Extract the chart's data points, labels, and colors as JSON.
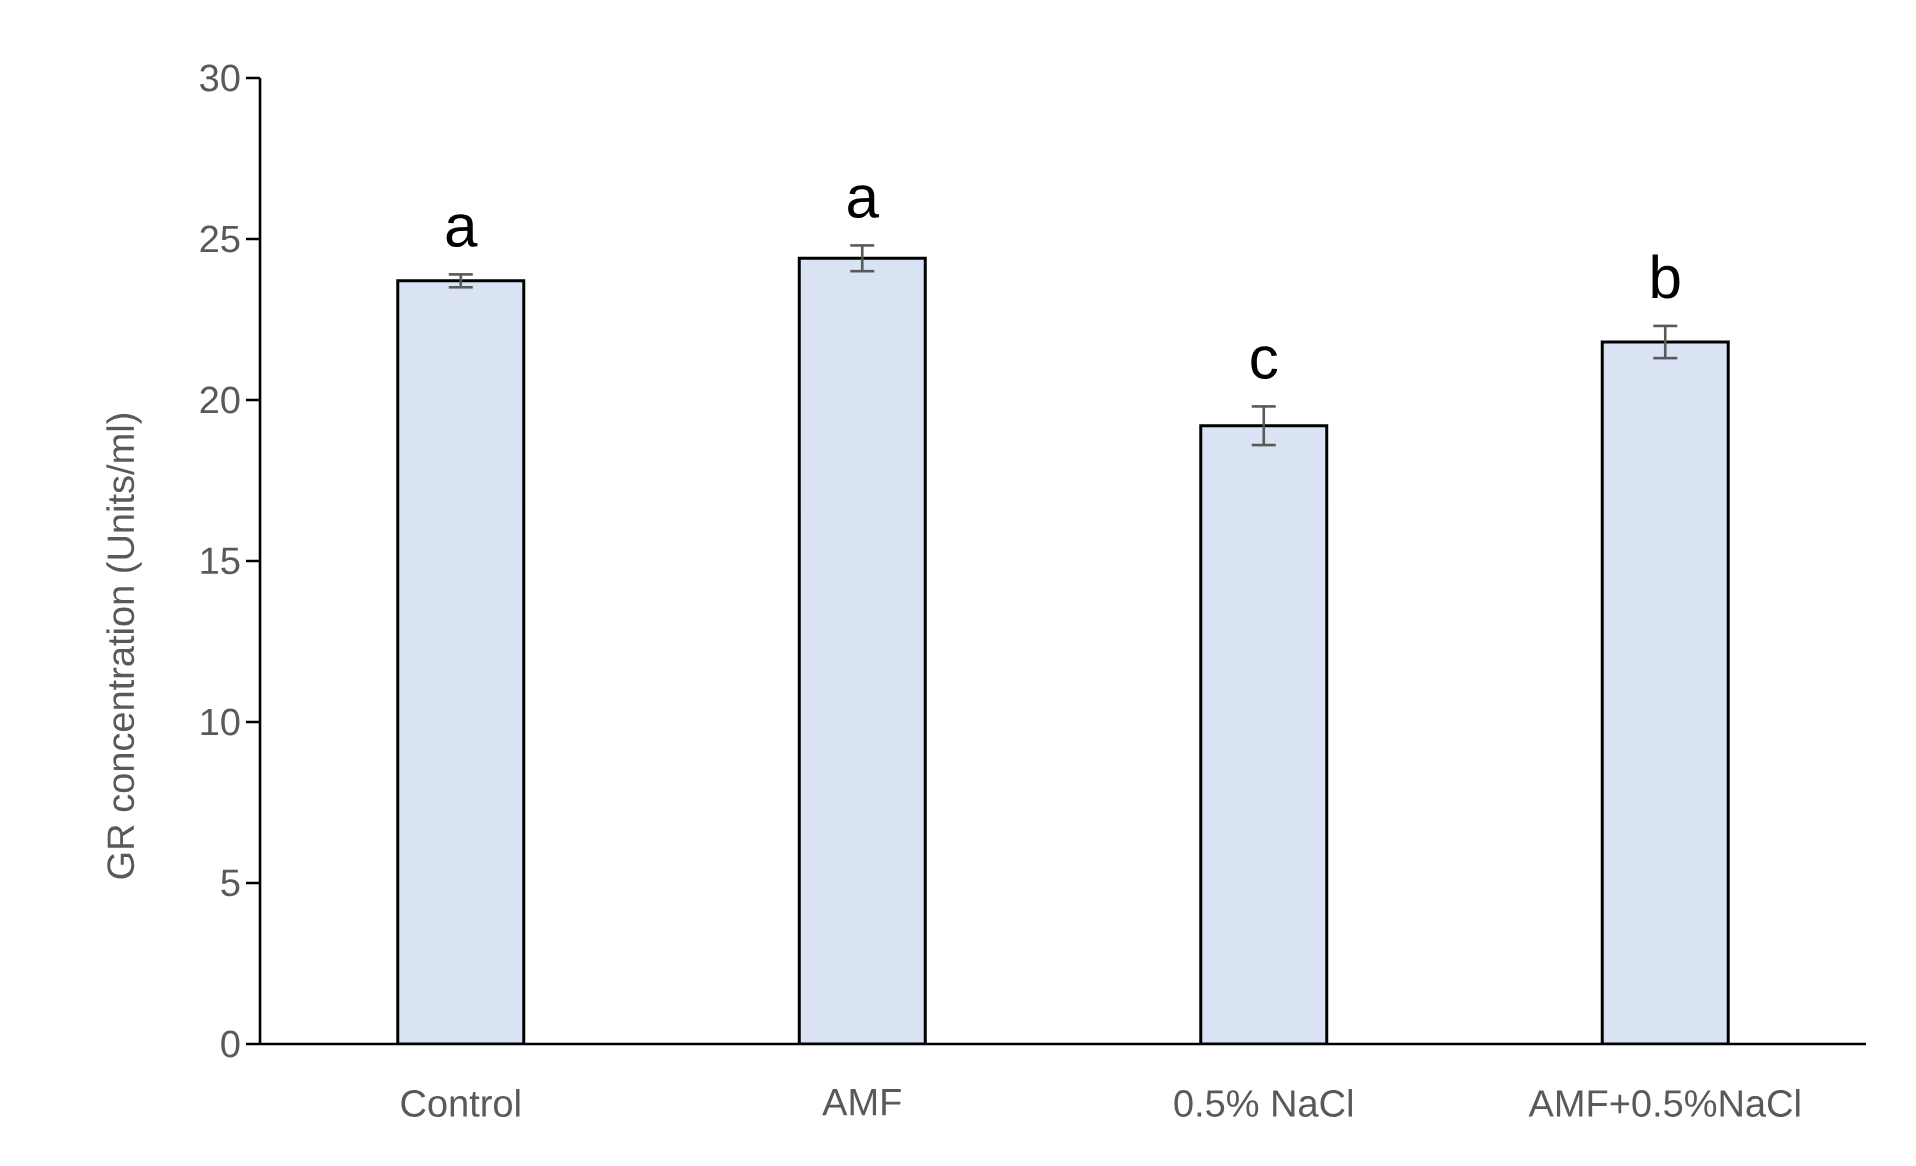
{
  "chart_data": {
    "type": "bar",
    "ylabel": "GR concentration (Units/ml)",
    "categories": [
      "Control",
      "AMF",
      "0.5% NaCl",
      "AMF+0.5%NaCl"
    ],
    "values": [
      23.7,
      24.4,
      19.2,
      21.8
    ],
    "errors": [
      0.2,
      0.4,
      0.6,
      0.5
    ],
    "color": "#dae3f3",
    "ylim": [
      0,
      30
    ],
    "yticks": [
      0,
      5,
      10,
      15,
      20,
      25,
      30
    ],
    "annotations": [
      "a",
      "a",
      "c",
      "b"
    ]
  }
}
